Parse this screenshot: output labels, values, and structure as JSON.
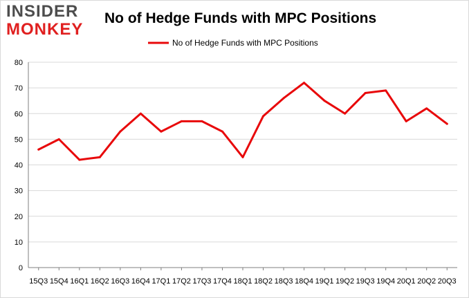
{
  "logo": {
    "line1": "INSIDER",
    "line2": "MONKEY"
  },
  "colors": {
    "series": "#e8080a",
    "grid": "#d9d9d9",
    "axis": "#7f7f7f",
    "logo_red": "#e02020",
    "logo_gray": "#4d4d4d"
  },
  "chart_data": {
    "type": "line",
    "title": "No of Hedge Funds with MPC Positions",
    "xlabel": "",
    "ylabel": "",
    "ylim": [
      0,
      80
    ],
    "yticks": [
      0,
      10,
      20,
      30,
      40,
      50,
      60,
      70,
      80
    ],
    "grid": true,
    "legend_position": "top-center",
    "categories": [
      "15Q3",
      "15Q4",
      "16Q1",
      "16Q2",
      "16Q3",
      "16Q4",
      "17Q1",
      "17Q2",
      "17Q3",
      "17Q4",
      "18Q1",
      "18Q2",
      "18Q3",
      "18Q4",
      "19Q1",
      "19Q2",
      "19Q3",
      "19Q4",
      "20Q1",
      "20Q2",
      "20Q3"
    ],
    "series": [
      {
        "name": "No of Hedge Funds with MPC Positions",
        "values": [
          46,
          50,
          42,
          43,
          53,
          60,
          53,
          57,
          57,
          53,
          43,
          59,
          66,
          72,
          65,
          60,
          68,
          69,
          57,
          62,
          56
        ]
      }
    ]
  }
}
